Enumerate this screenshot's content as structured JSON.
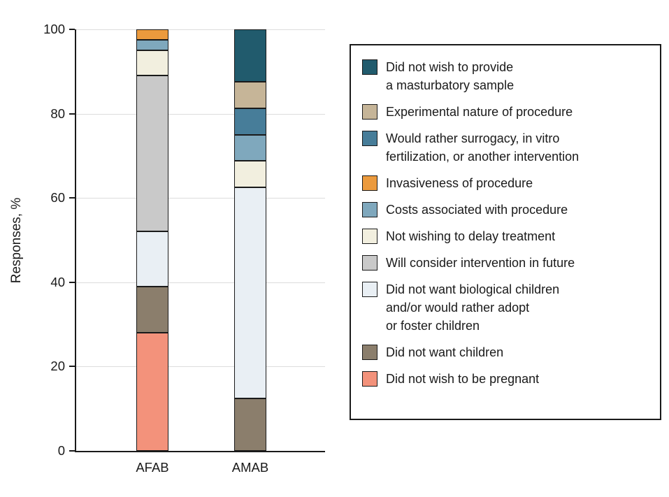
{
  "figure": {
    "ylabel": "Responses, %"
  },
  "chart_data": {
    "type": "bar",
    "variant": "stacked",
    "title": "",
    "xlabel": "",
    "ylabel": "Responses, %",
    "ylim": [
      0,
      100
    ],
    "yticks": [
      0,
      20,
      40,
      60,
      80,
      100
    ],
    "grid": true,
    "legend_position": "right",
    "stack_order": "first series at top of bar",
    "categories": [
      "AFAB",
      "AMAB"
    ],
    "series": [
      {
        "name": "Did not wish to provide a masturbatory sample",
        "color": "#215b6d",
        "values": [
          0,
          12.5
        ]
      },
      {
        "name": "Experimental nature of procedure",
        "color": "#c6b598",
        "values": [
          0,
          6.25
        ]
      },
      {
        "name": "Would rather surrogacy, in vitro fertilization, or another intervention",
        "color": "#477d99",
        "values": [
          0,
          6.25
        ]
      },
      {
        "name": "Invasiveness of procedure",
        "color": "#eb9a3d",
        "values": [
          2.5,
          0
        ]
      },
      {
        "name": "Costs associated with procedure",
        "color": "#7fa8bd",
        "values": [
          2.5,
          6.25
        ]
      },
      {
        "name": "Not wishing to delay treatment",
        "color": "#f2efdf",
        "values": [
          6,
          6.25
        ]
      },
      {
        "name": "Will consider intervention in future",
        "color": "#c9c9c9",
        "values": [
          37,
          0
        ]
      },
      {
        "name": "Did not want biological children and/or would rather adopt or foster children",
        "color": "#e9eff4",
        "values": [
          13,
          50
        ]
      },
      {
        "name": "Did not want children",
        "color": "#8b7e6c",
        "values": [
          11,
          12.5
        ]
      },
      {
        "name": "Did not wish to be pregnant",
        "color": "#f3927b",
        "values": [
          28,
          0
        ]
      }
    ]
  },
  "legend": {
    "items": [
      {
        "label": "Did not wish to provide\na masturbatory sample"
      },
      {
        "label": "Experimental nature of procedure"
      },
      {
        "label": "Would rather surrogacy, in vitro\nfertilization, or another intervention"
      },
      {
        "label": "Invasiveness of procedure"
      },
      {
        "label": "Costs associated with procedure"
      },
      {
        "label": "Not wishing to delay treatment"
      },
      {
        "label": "Will consider intervention in future"
      },
      {
        "label": "Did not want biological children\nand/or would rather adopt\nor foster children"
      },
      {
        "label": "Did not want children"
      },
      {
        "label": "Did not wish to be pregnant"
      }
    ]
  }
}
